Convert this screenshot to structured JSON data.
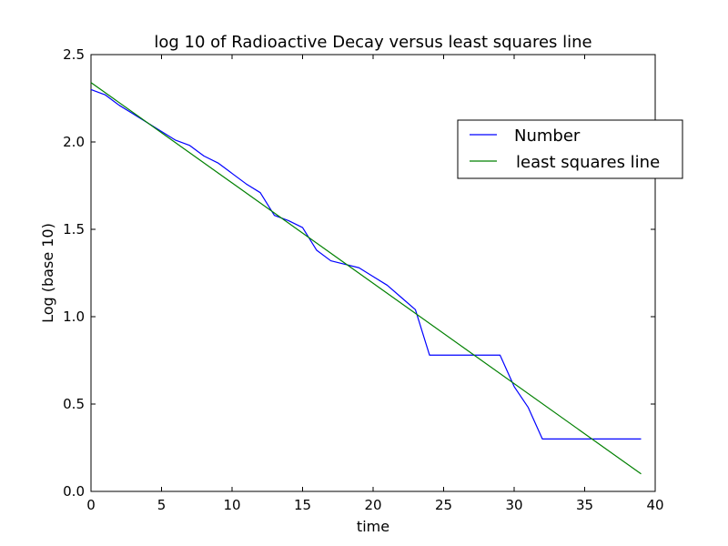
{
  "chart_data": {
    "type": "line",
    "title": "log 10 of Radioactive Decay versus least squares line",
    "xlabel": "time",
    "ylabel": "Log (base 10)",
    "xlim": [
      0,
      40
    ],
    "ylim": [
      0,
      2.5
    ],
    "xticks": [
      0,
      5,
      10,
      15,
      20,
      25,
      30,
      35,
      40
    ],
    "yticks": [
      0.0,
      0.5,
      1.0,
      1.5,
      2.0,
      2.5
    ],
    "xtick_labels": [
      "0",
      "5",
      "10",
      "15",
      "20",
      "25",
      "30",
      "35",
      "40"
    ],
    "ytick_labels": [
      "0.0",
      "0.5",
      "1.0",
      "1.5",
      "2.0",
      "2.5"
    ],
    "grid": false,
    "legend_position": "upper-right",
    "series": [
      {
        "name": "Number",
        "color": "#0000ff",
        "x": [
          0,
          1,
          2,
          3,
          4,
          5,
          6,
          7,
          8,
          9,
          10,
          11,
          12,
          13,
          14,
          15,
          16,
          17,
          18,
          19,
          20,
          21,
          22,
          23,
          24,
          25,
          26,
          27,
          28,
          29,
          30,
          31,
          32,
          33,
          34,
          35,
          36,
          37,
          38,
          39
        ],
        "y": [
          2.3,
          2.27,
          2.21,
          2.16,
          2.11,
          2.06,
          2.01,
          1.98,
          1.92,
          1.88,
          1.82,
          1.76,
          1.71,
          1.58,
          1.55,
          1.51,
          1.38,
          1.32,
          1.3,
          1.28,
          1.23,
          1.18,
          1.11,
          1.04,
          0.78,
          0.78,
          0.78,
          0.78,
          0.78,
          0.78,
          0.6,
          0.48,
          0.3,
          0.3,
          0.3,
          0.3,
          0.3,
          0.3,
          0.3,
          0.3
        ]
      },
      {
        "name": "least squares line",
        "color": "#008000",
        "x": [
          0,
          39
        ],
        "y": [
          2.34,
          0.1
        ]
      }
    ]
  }
}
